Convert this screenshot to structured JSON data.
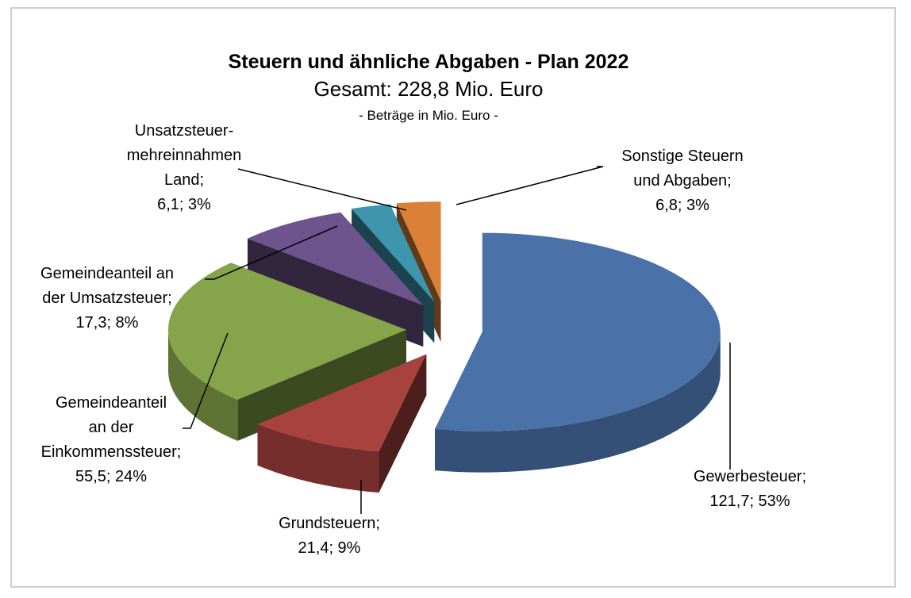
{
  "chart_data": {
    "type": "pie3d",
    "title": "Steuern und ähnliche Abgaben - Plan 2022",
    "subtitle": "Gesamt: 228,8 Mio. Euro",
    "note": "- Beträge in Mio. Euro -",
    "values": [
      121.7,
      21.4,
      55.5,
      17.3,
      6.1,
      6.8
    ],
    "value_labels": [
      "Gewerbesteuer;\n121,7; 53%",
      "Grundsteuern;\n21,4; 9%",
      "Gemeindeanteil\nan der\nEinkommenssteuer;\n55,5; 24%",
      "Gemeindeanteil an\nder Umsatzsteuer;\n17,3; 8%",
      "Unsatzsteuer-\nmehreinnahmen\nLand;\n6,1; 3%",
      "Sonstige Steuern\nund Abgaben;\n6,8; 3%"
    ],
    "colors": [
      "#4a72a8",
      "#a8423f",
      "#86a44a",
      "#6e548d",
      "#3d96ae",
      "#da8137"
    ]
  }
}
